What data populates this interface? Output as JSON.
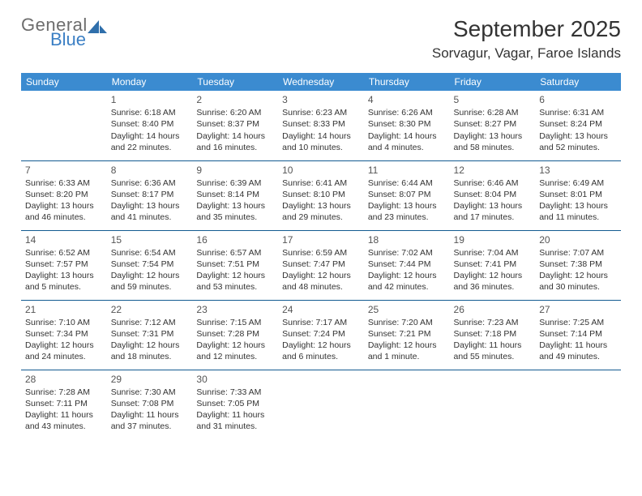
{
  "logo": {
    "line1": "General",
    "line2": "Blue",
    "color_general": "#6d6d6d",
    "color_blue": "#3b7fc4",
    "icon_color": "#2f6fab"
  },
  "title": "September 2025",
  "location": "Sorvagur, Vagar, Faroe Islands",
  "header_bg": "#3b8bd0",
  "header_fg": "#ffffff",
  "border_color": "#135b91",
  "text_color": "#333333",
  "daynum_color": "#555555",
  "font_family": "Arial, Helvetica, sans-serif",
  "title_fontsize": 28,
  "location_fontsize": 17,
  "dayheader_fontsize": 12,
  "cell_fontsize": 10.5,
  "weekdays": [
    "Sunday",
    "Monday",
    "Tuesday",
    "Wednesday",
    "Thursday",
    "Friday",
    "Saturday"
  ],
  "weeks": [
    [
      null,
      {
        "n": "1",
        "sr": "Sunrise: 6:18 AM",
        "ss": "Sunset: 8:40 PM",
        "dl": "Daylight: 14 hours and 22 minutes."
      },
      {
        "n": "2",
        "sr": "Sunrise: 6:20 AM",
        "ss": "Sunset: 8:37 PM",
        "dl": "Daylight: 14 hours and 16 minutes."
      },
      {
        "n": "3",
        "sr": "Sunrise: 6:23 AM",
        "ss": "Sunset: 8:33 PM",
        "dl": "Daylight: 14 hours and 10 minutes."
      },
      {
        "n": "4",
        "sr": "Sunrise: 6:26 AM",
        "ss": "Sunset: 8:30 PM",
        "dl": "Daylight: 14 hours and 4 minutes."
      },
      {
        "n": "5",
        "sr": "Sunrise: 6:28 AM",
        "ss": "Sunset: 8:27 PM",
        "dl": "Daylight: 13 hours and 58 minutes."
      },
      {
        "n": "6",
        "sr": "Sunrise: 6:31 AM",
        "ss": "Sunset: 8:24 PM",
        "dl": "Daylight: 13 hours and 52 minutes."
      }
    ],
    [
      {
        "n": "7",
        "sr": "Sunrise: 6:33 AM",
        "ss": "Sunset: 8:20 PM",
        "dl": "Daylight: 13 hours and 46 minutes."
      },
      {
        "n": "8",
        "sr": "Sunrise: 6:36 AM",
        "ss": "Sunset: 8:17 PM",
        "dl": "Daylight: 13 hours and 41 minutes."
      },
      {
        "n": "9",
        "sr": "Sunrise: 6:39 AM",
        "ss": "Sunset: 8:14 PM",
        "dl": "Daylight: 13 hours and 35 minutes."
      },
      {
        "n": "10",
        "sr": "Sunrise: 6:41 AM",
        "ss": "Sunset: 8:10 PM",
        "dl": "Daylight: 13 hours and 29 minutes."
      },
      {
        "n": "11",
        "sr": "Sunrise: 6:44 AM",
        "ss": "Sunset: 8:07 PM",
        "dl": "Daylight: 13 hours and 23 minutes."
      },
      {
        "n": "12",
        "sr": "Sunrise: 6:46 AM",
        "ss": "Sunset: 8:04 PM",
        "dl": "Daylight: 13 hours and 17 minutes."
      },
      {
        "n": "13",
        "sr": "Sunrise: 6:49 AM",
        "ss": "Sunset: 8:01 PM",
        "dl": "Daylight: 13 hours and 11 minutes."
      }
    ],
    [
      {
        "n": "14",
        "sr": "Sunrise: 6:52 AM",
        "ss": "Sunset: 7:57 PM",
        "dl": "Daylight: 13 hours and 5 minutes."
      },
      {
        "n": "15",
        "sr": "Sunrise: 6:54 AM",
        "ss": "Sunset: 7:54 PM",
        "dl": "Daylight: 12 hours and 59 minutes."
      },
      {
        "n": "16",
        "sr": "Sunrise: 6:57 AM",
        "ss": "Sunset: 7:51 PM",
        "dl": "Daylight: 12 hours and 53 minutes."
      },
      {
        "n": "17",
        "sr": "Sunrise: 6:59 AM",
        "ss": "Sunset: 7:47 PM",
        "dl": "Daylight: 12 hours and 48 minutes."
      },
      {
        "n": "18",
        "sr": "Sunrise: 7:02 AM",
        "ss": "Sunset: 7:44 PM",
        "dl": "Daylight: 12 hours and 42 minutes."
      },
      {
        "n": "19",
        "sr": "Sunrise: 7:04 AM",
        "ss": "Sunset: 7:41 PM",
        "dl": "Daylight: 12 hours and 36 minutes."
      },
      {
        "n": "20",
        "sr": "Sunrise: 7:07 AM",
        "ss": "Sunset: 7:38 PM",
        "dl": "Daylight: 12 hours and 30 minutes."
      }
    ],
    [
      {
        "n": "21",
        "sr": "Sunrise: 7:10 AM",
        "ss": "Sunset: 7:34 PM",
        "dl": "Daylight: 12 hours and 24 minutes."
      },
      {
        "n": "22",
        "sr": "Sunrise: 7:12 AM",
        "ss": "Sunset: 7:31 PM",
        "dl": "Daylight: 12 hours and 18 minutes."
      },
      {
        "n": "23",
        "sr": "Sunrise: 7:15 AM",
        "ss": "Sunset: 7:28 PM",
        "dl": "Daylight: 12 hours and 12 minutes."
      },
      {
        "n": "24",
        "sr": "Sunrise: 7:17 AM",
        "ss": "Sunset: 7:24 PM",
        "dl": "Daylight: 12 hours and 6 minutes."
      },
      {
        "n": "25",
        "sr": "Sunrise: 7:20 AM",
        "ss": "Sunset: 7:21 PM",
        "dl": "Daylight: 12 hours and 1 minute."
      },
      {
        "n": "26",
        "sr": "Sunrise: 7:23 AM",
        "ss": "Sunset: 7:18 PM",
        "dl": "Daylight: 11 hours and 55 minutes."
      },
      {
        "n": "27",
        "sr": "Sunrise: 7:25 AM",
        "ss": "Sunset: 7:14 PM",
        "dl": "Daylight: 11 hours and 49 minutes."
      }
    ],
    [
      {
        "n": "28",
        "sr": "Sunrise: 7:28 AM",
        "ss": "Sunset: 7:11 PM",
        "dl": "Daylight: 11 hours and 43 minutes."
      },
      {
        "n": "29",
        "sr": "Sunrise: 7:30 AM",
        "ss": "Sunset: 7:08 PM",
        "dl": "Daylight: 11 hours and 37 minutes."
      },
      {
        "n": "30",
        "sr": "Sunrise: 7:33 AM",
        "ss": "Sunset: 7:05 PM",
        "dl": "Daylight: 11 hours and 31 minutes."
      },
      null,
      null,
      null,
      null
    ]
  ]
}
